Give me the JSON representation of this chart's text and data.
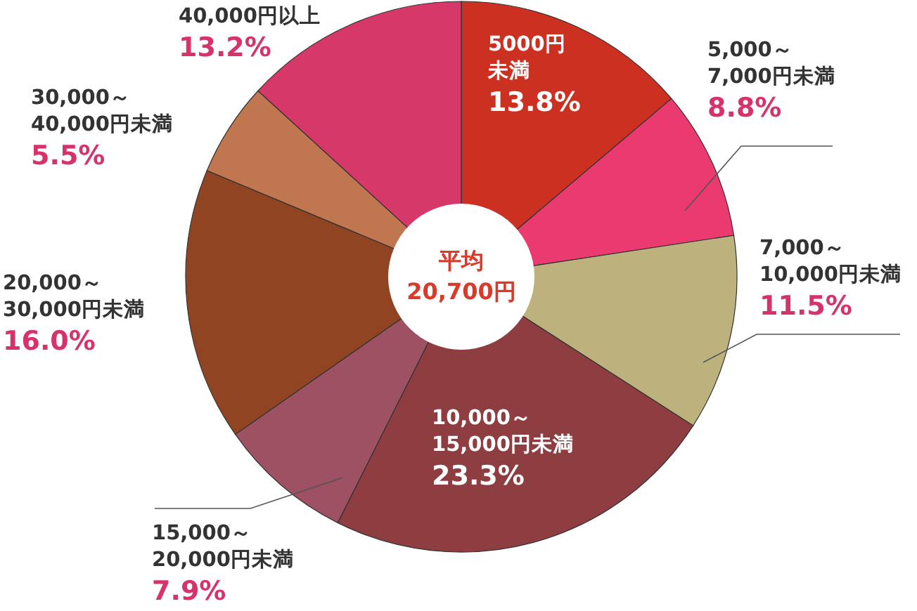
{
  "chart_data": {
    "type": "donut",
    "categories": [
      "5000円未満",
      "5,000～7,000円未満",
      "7,000～10,000円未満",
      "10,000～15,000円未満",
      "15,000～20,000円未満",
      "20,000～30,000円未満",
      "30,000～40,000円未満",
      "40,000円以上"
    ],
    "values": [
      13.8,
      8.8,
      11.5,
      23.3,
      7.9,
      16.0,
      5.5,
      13.2
    ],
    "value_labels": [
      "13.8%",
      "8.8%",
      "11.5%",
      "23.3%",
      "7.9%",
      "16.0%",
      "5.5%",
      "13.2%"
    ],
    "colors": [
      "#cc3021",
      "#eb3a6f",
      "#bdb17e",
      "#8e3d41",
      "#9d5163",
      "#914422",
      "#c07750",
      "#d7386a"
    ],
    "annotations": [
      "平均\n20,700円"
    ]
  }
}
